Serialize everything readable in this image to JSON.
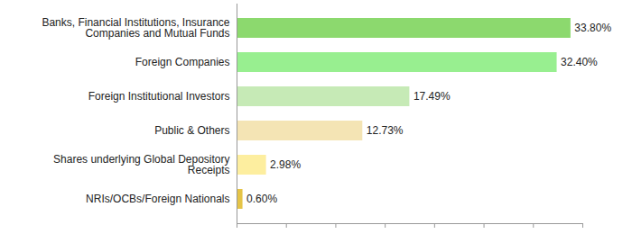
{
  "chart_data": {
    "type": "bar",
    "orientation": "horizontal",
    "categories": [
      "Banks, Financial Institutions, Insurance Companies and Mutual Funds",
      "Foreign Companies",
      "Foreign Institutional Investors",
      "Public & Others",
      "Shares underlying Global Depository Receipts",
      "NRIs/OCBs/Foreign Nationals"
    ],
    "values": [
      33.8,
      32.4,
      17.49,
      12.73,
      2.98,
      0.6
    ],
    "value_labels": [
      "33.80%",
      "32.40%",
      "17.49%",
      "12.73%",
      "2.98%",
      "0.60%"
    ],
    "colors": [
      "#8cd96e",
      "#98ef90",
      "#c6eab6",
      "#f4e4b4",
      "#fdee9f",
      "#e5c447"
    ],
    "xlim": [
      0,
      35
    ],
    "xticks": [
      0,
      5,
      10,
      15,
      20,
      25,
      30,
      35
    ],
    "data_labels": true,
    "tick_labels": "y",
    "grid": false
  }
}
